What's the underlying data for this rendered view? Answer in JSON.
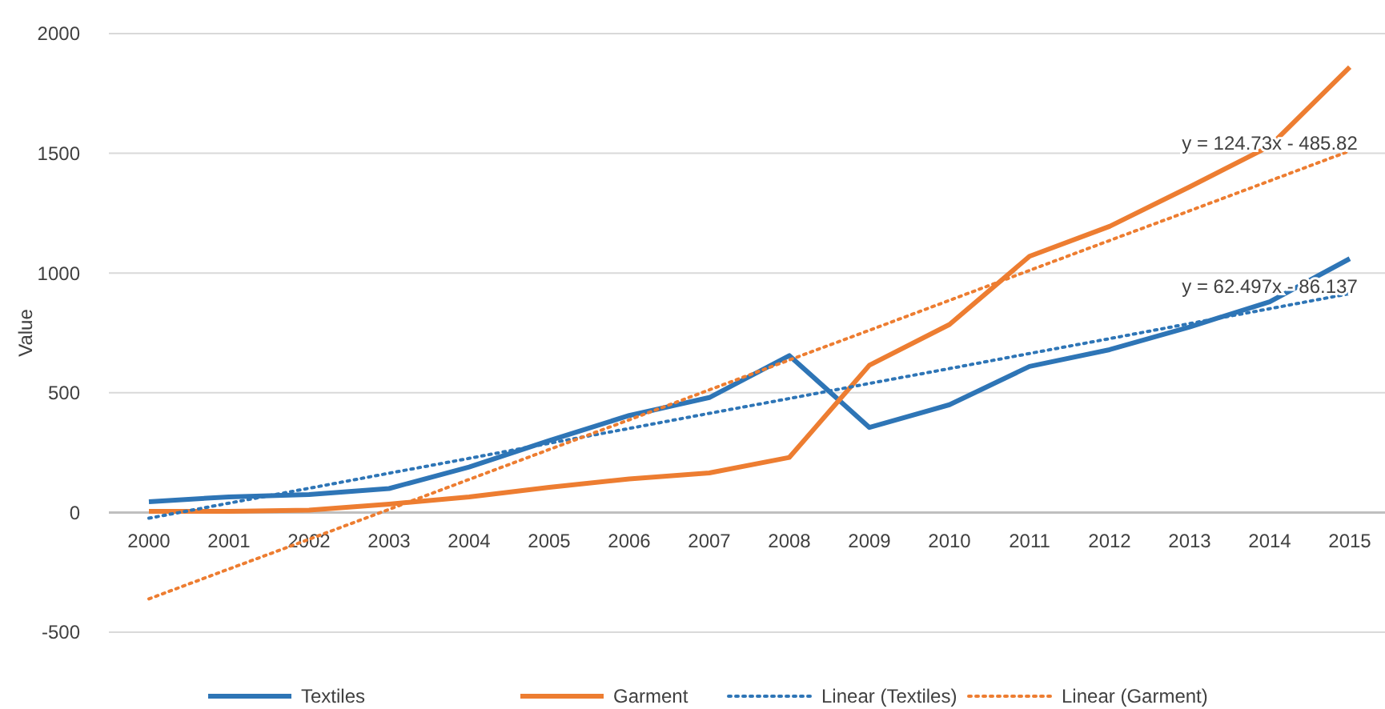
{
  "chart_data": {
    "type": "line",
    "ylabel": "Value",
    "categories": [
      "2000",
      "2001",
      "2002",
      "2003",
      "2004",
      "2005",
      "2006",
      "2007",
      "2008",
      "2009",
      "2010",
      "2011",
      "2012",
      "2013",
      "2014",
      "2015"
    ],
    "series": [
      {
        "name": "Textiles",
        "color": "#2e75b6",
        "values": [
          45,
          65,
          75,
          100,
          190,
          300,
          405,
          480,
          655,
          355,
          450,
          610,
          680,
          775,
          880,
          1060
        ]
      },
      {
        "name": "Garment",
        "color": "#ed7d31",
        "values": [
          5,
          5,
          10,
          35,
          65,
          105,
          140,
          165,
          230,
          615,
          785,
          1070,
          1195,
          1360,
          1530,
          1860
        ]
      },
      {
        "name": "Linear (Textiles)",
        "color": "#2e75b6",
        "values": [
          -24,
          39,
          101,
          164,
          226,
          289,
          351,
          414,
          476,
          539,
          601,
          664,
          726,
          789,
          851,
          914
        ],
        "line_style": "dotted"
      },
      {
        "name": "Linear (Garment)",
        "color": "#ed7d31",
        "values": [
          -361,
          -236,
          -112,
          13,
          138,
          263,
          387,
          512,
          637,
          761,
          886,
          1011,
          1136,
          1260,
          1385,
          1510
        ],
        "line_style": "dotted"
      }
    ],
    "ylim": [
      -500,
      2000
    ],
    "yticks": [
      -500,
      0,
      500,
      1000,
      1500,
      2000
    ],
    "grid": "y",
    "legend": "bottom",
    "marker": "none",
    "line_style": "solid",
    "annotations": [
      {
        "text": "y = 124.73x - 485.82",
        "x": "2014",
        "y": 1500
      },
      {
        "text": "y = 62.497x - 86.137",
        "x": "2014",
        "y": 900
      }
    ]
  }
}
